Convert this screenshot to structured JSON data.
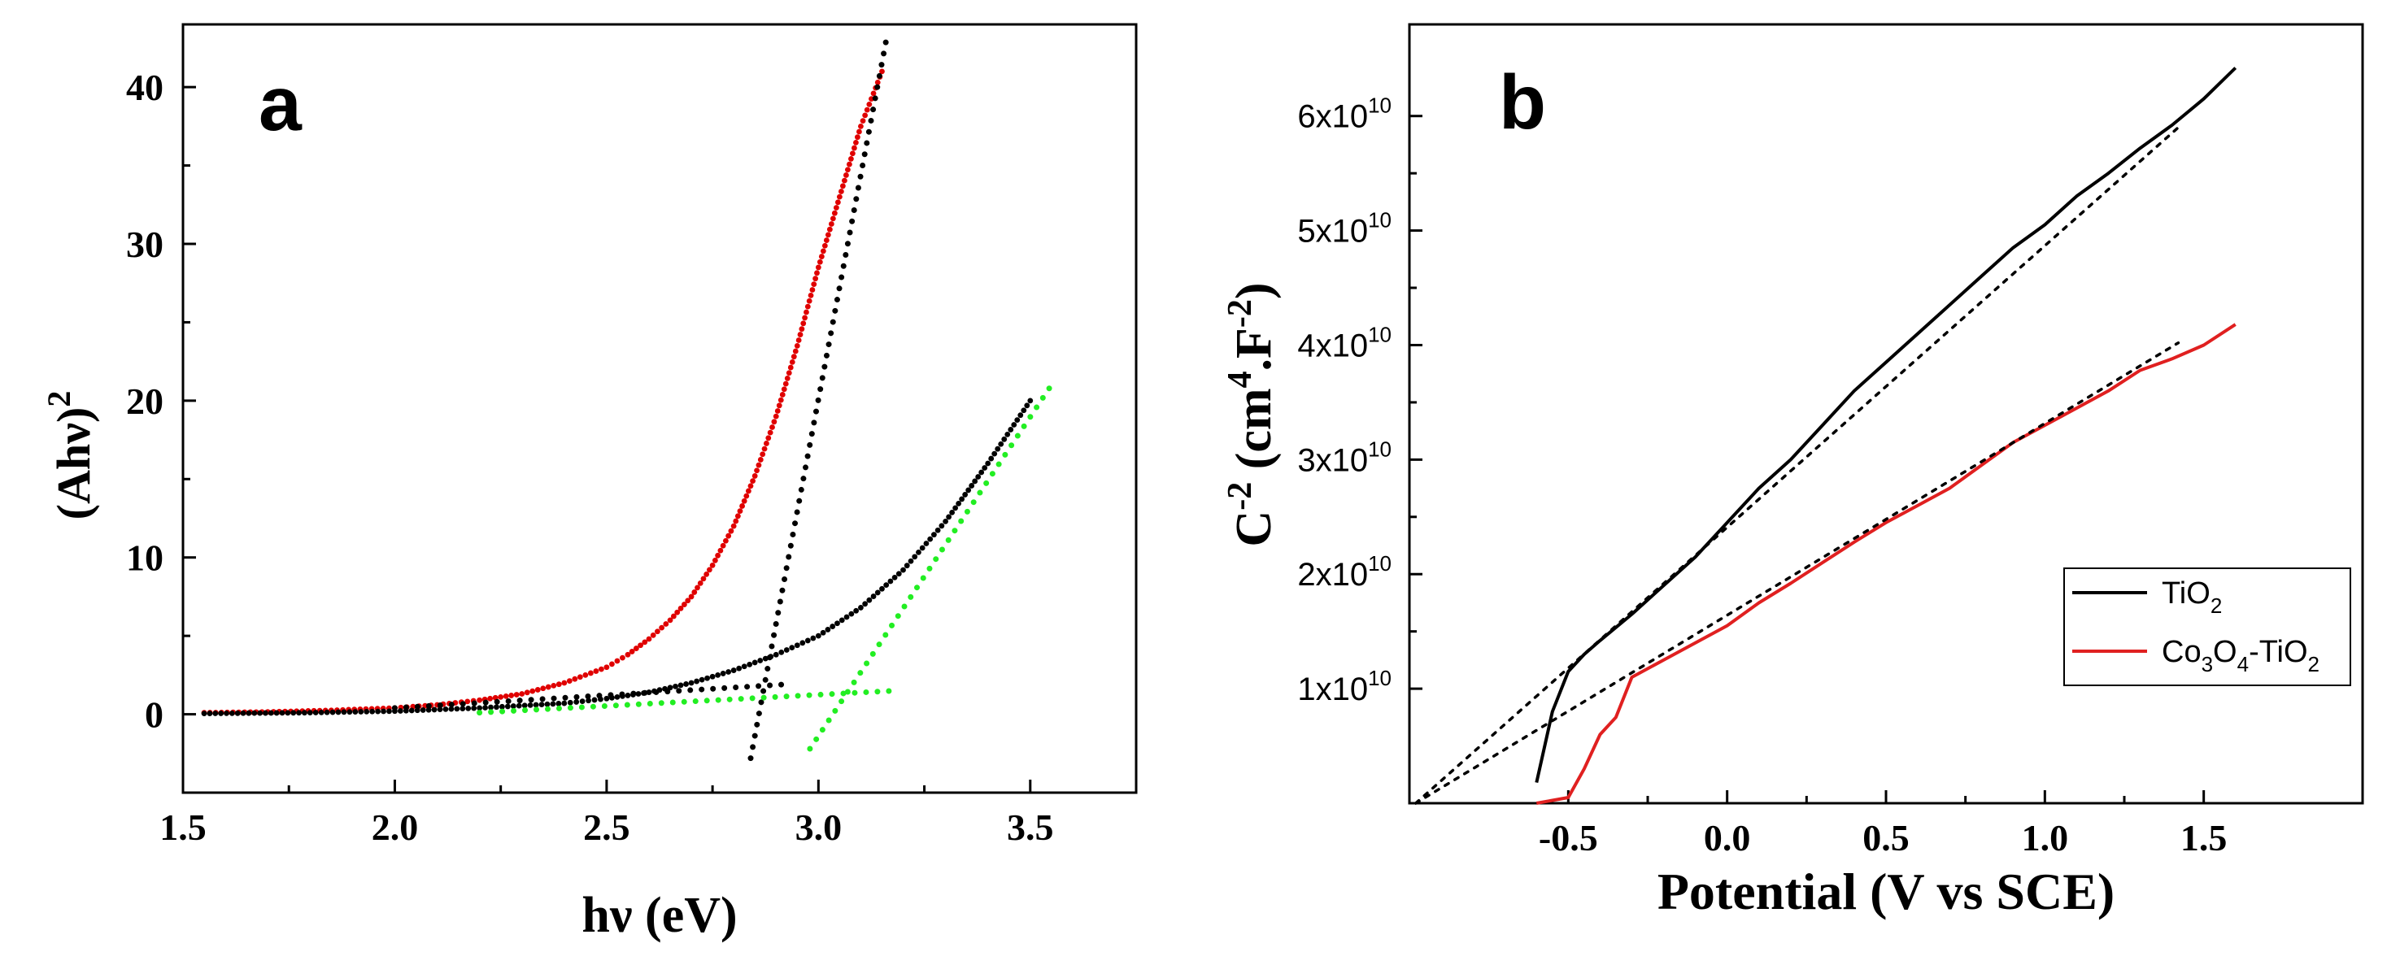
{
  "chart_data": [
    {
      "panel": "a",
      "type": "scatter",
      "xlabel": "hν (eV)",
      "ylabel_main": "(Ahν)",
      "ylabel_sup": "2",
      "xlim": [
        1.5,
        3.75
      ],
      "ylim": [
        -5,
        44
      ],
      "xticks": [
        1.5,
        2.0,
        2.5,
        3.0,
        3.5
      ],
      "xtick_labels": [
        "1.5",
        "2.0",
        "2.5",
        "3.0",
        "3.5"
      ],
      "yticks": [
        0,
        10,
        20,
        30,
        40
      ],
      "ytick_labels": [
        "0",
        "10",
        "20",
        "30",
        "40"
      ],
      "series": [
        {
          "name": "red curve",
          "color": "#e00000",
          "style": "dots",
          "x": [
            1.55,
            1.7,
            1.85,
            2.0,
            2.1,
            2.2,
            2.3,
            2.4,
            2.5,
            2.55,
            2.6,
            2.65,
            2.7,
            2.75,
            2.8,
            2.85,
            2.9,
            2.95,
            3.0,
            3.05,
            3.1,
            3.15
          ],
          "y": [
            0.1,
            0.15,
            0.25,
            0.4,
            0.6,
            0.9,
            1.3,
            2.0,
            3.0,
            3.8,
            4.8,
            6.0,
            7.5,
            9.5,
            12.0,
            15.2,
            19.0,
            23.5,
            28.5,
            33.0,
            37.5,
            41.0
          ]
        },
        {
          "name": "black curve",
          "color": "#000000",
          "style": "dots",
          "x": [
            1.55,
            1.8,
            2.0,
            2.2,
            2.4,
            2.5,
            2.6,
            2.7,
            2.8,
            2.9,
            3.0,
            3.1,
            3.2,
            3.3,
            3.4,
            3.5
          ],
          "y": [
            0.05,
            0.1,
            0.2,
            0.4,
            0.7,
            1.0,
            1.4,
            2.0,
            2.8,
            3.8,
            5.0,
            6.8,
            9.2,
            12.3,
            16.0,
            20.0
          ]
        },
        {
          "name": "black tangent (red)",
          "color": "#000000",
          "style": "dotted",
          "x": [
            2.84,
            3.16
          ],
          "y": [
            -2.8,
            43.0
          ]
        },
        {
          "name": "black baseline",
          "color": "#000000",
          "style": "dotted",
          "x": [
            2.0,
            2.92
          ],
          "y": [
            0.4,
            1.9
          ]
        },
        {
          "name": "green tangent",
          "color": "#22ee22",
          "style": "dotted",
          "x": [
            2.98,
            3.55
          ],
          "y": [
            -2.2,
            21.0
          ]
        },
        {
          "name": "green baseline",
          "color": "#22ee22",
          "style": "dotted",
          "x": [
            2.2,
            3.18
          ],
          "y": [
            0.1,
            1.5
          ]
        }
      ]
    },
    {
      "panel": "b",
      "type": "line",
      "xlabel": "Potential (V vs SCE)",
      "ylabel_main": "C",
      "ylabel_sup1": "-2",
      "ylabel_mid": " (cm",
      "ylabel_sup2": "4",
      "ylabel_mid2": ".F",
      "ylabel_sup3": "-2",
      "ylabel_end": ")",
      "xlim": [
        -1.0,
        2.0
      ],
      "ylim": [
        0,
        6.8
      ],
      "y_scale_note": "values ×10^10",
      "xticks": [
        -0.5,
        0.0,
        0.5,
        1.0,
        1.5
      ],
      "xtick_labels": [
        "-0.5",
        "0.0",
        "0.5",
        "1.0",
        "1.5"
      ],
      "yticks": [
        1,
        2,
        3,
        4,
        5,
        6
      ],
      "ytick_mantissa": [
        "1x10",
        "2x10",
        "3x10",
        "4x10",
        "5x10",
        "6x10"
      ],
      "ytick_exponent": "10",
      "legend": {
        "location": "bottom-right",
        "entries": [
          {
            "label_main": "TiO",
            "label_sub": "2",
            "color": "#000000"
          },
          {
            "label_parts": [
              "Co",
              "3",
              "O",
              "4",
              "-TiO",
              "2"
            ],
            "color": "#e02020"
          }
        ]
      },
      "series": [
        {
          "name": "TiO2",
          "color": "#000000",
          "style": "solid",
          "x": [
            -0.6,
            -0.55,
            -0.5,
            -0.45,
            -0.4,
            -0.3,
            -0.2,
            -0.1,
            0.0,
            0.1,
            0.2,
            0.3,
            0.4,
            0.5,
            0.6,
            0.7,
            0.8,
            0.9,
            1.0,
            1.1,
            1.2,
            1.3,
            1.4,
            1.5,
            1.6
          ],
          "y": [
            0.18,
            0.8,
            1.15,
            1.3,
            1.42,
            1.65,
            1.9,
            2.15,
            2.45,
            2.75,
            3.0,
            3.3,
            3.6,
            3.85,
            4.1,
            4.35,
            4.6,
            4.85,
            5.05,
            5.3,
            5.5,
            5.72,
            5.92,
            6.15,
            6.42
          ]
        },
        {
          "name": "Co3O4-TiO2",
          "color": "#e02020",
          "style": "solid",
          "x": [
            -0.6,
            -0.5,
            -0.45,
            -0.4,
            -0.35,
            -0.3,
            -0.2,
            -0.1,
            0.0,
            0.1,
            0.2,
            0.3,
            0.4,
            0.5,
            0.6,
            0.7,
            0.8,
            0.9,
            1.0,
            1.1,
            1.2,
            1.3,
            1.4,
            1.5,
            1.6
          ],
          "y": [
            0.0,
            0.05,
            0.3,
            0.6,
            0.75,
            1.1,
            1.25,
            1.4,
            1.55,
            1.75,
            1.92,
            2.1,
            2.28,
            2.45,
            2.6,
            2.75,
            2.95,
            3.15,
            3.3,
            3.45,
            3.6,
            3.78,
            3.88,
            4.0,
            4.18
          ]
        },
        {
          "name": "TiO2 fit",
          "color": "#000000",
          "style": "dotted",
          "x": [
            -0.98,
            1.42
          ],
          "y": [
            0.0,
            5.9
          ]
        },
        {
          "name": "Co3O4-TiO2 fit",
          "color": "#000000",
          "style": "dotted",
          "x": [
            -0.98,
            1.42
          ],
          "y": [
            0.0,
            4.02
          ]
        }
      ]
    }
  ],
  "labels": {
    "panel_a": "a",
    "panel_b": "b"
  }
}
